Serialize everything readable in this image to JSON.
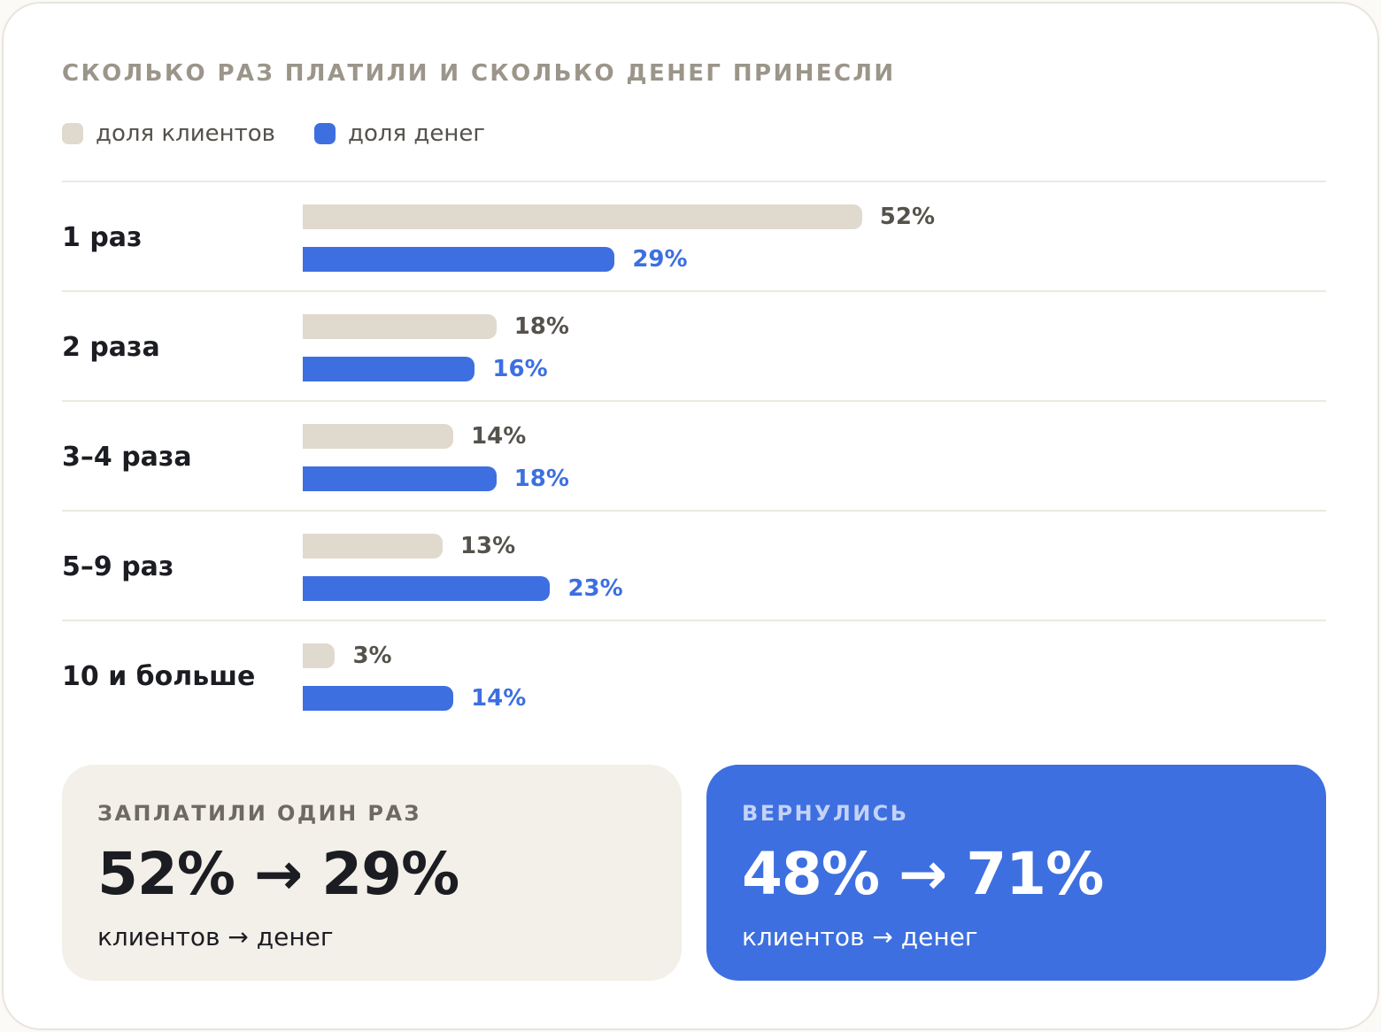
{
  "title": "СКОЛЬКО РАЗ ПЛАТИЛИ И СКОЛЬКО ДЕНЕГ ПРИНЕСЛИ",
  "legend": [
    {
      "label": "доля клиентов",
      "color": "#e0d9ce"
    },
    {
      "label": "доля денег",
      "color": "#3d6fe0"
    }
  ],
  "chart_data": {
    "type": "bar",
    "orientation": "horizontal",
    "title": "СКОЛЬКО РАЗ ПЛАТИЛИ И СКОЛЬКО ДЕНЕГ ПРИНЕСЛИ",
    "categories": [
      "1 раз",
      "2 раза",
      "3–4 раза",
      "5–9 раз",
      "10 и больше"
    ],
    "series": [
      {
        "name": "доля клиентов",
        "values": [
          52,
          18,
          14,
          13,
          3
        ],
        "labels": [
          "52%",
          "18%",
          "14%",
          "13%",
          "3%"
        ],
        "color": "#e0d9ce"
      },
      {
        "name": "доля денег",
        "values": [
          29,
          16,
          18,
          23,
          14
        ],
        "labels": [
          "29%",
          "16%",
          "18%",
          "23%",
          "14%"
        ],
        "color": "#3d6fe0"
      }
    ],
    "xlim": [
      0,
      100
    ],
    "grid": false,
    "legend_position": "top-left"
  },
  "summary": {
    "left": {
      "label": "ЗАПЛАТИЛИ ОДИН РАЗ",
      "value": "52% → 29%",
      "sub": "клиентов → денег"
    },
    "right": {
      "label": "ВЕРНУЛИСЬ",
      "value": "48% → 71%",
      "sub": "клиентов → денег"
    }
  }
}
